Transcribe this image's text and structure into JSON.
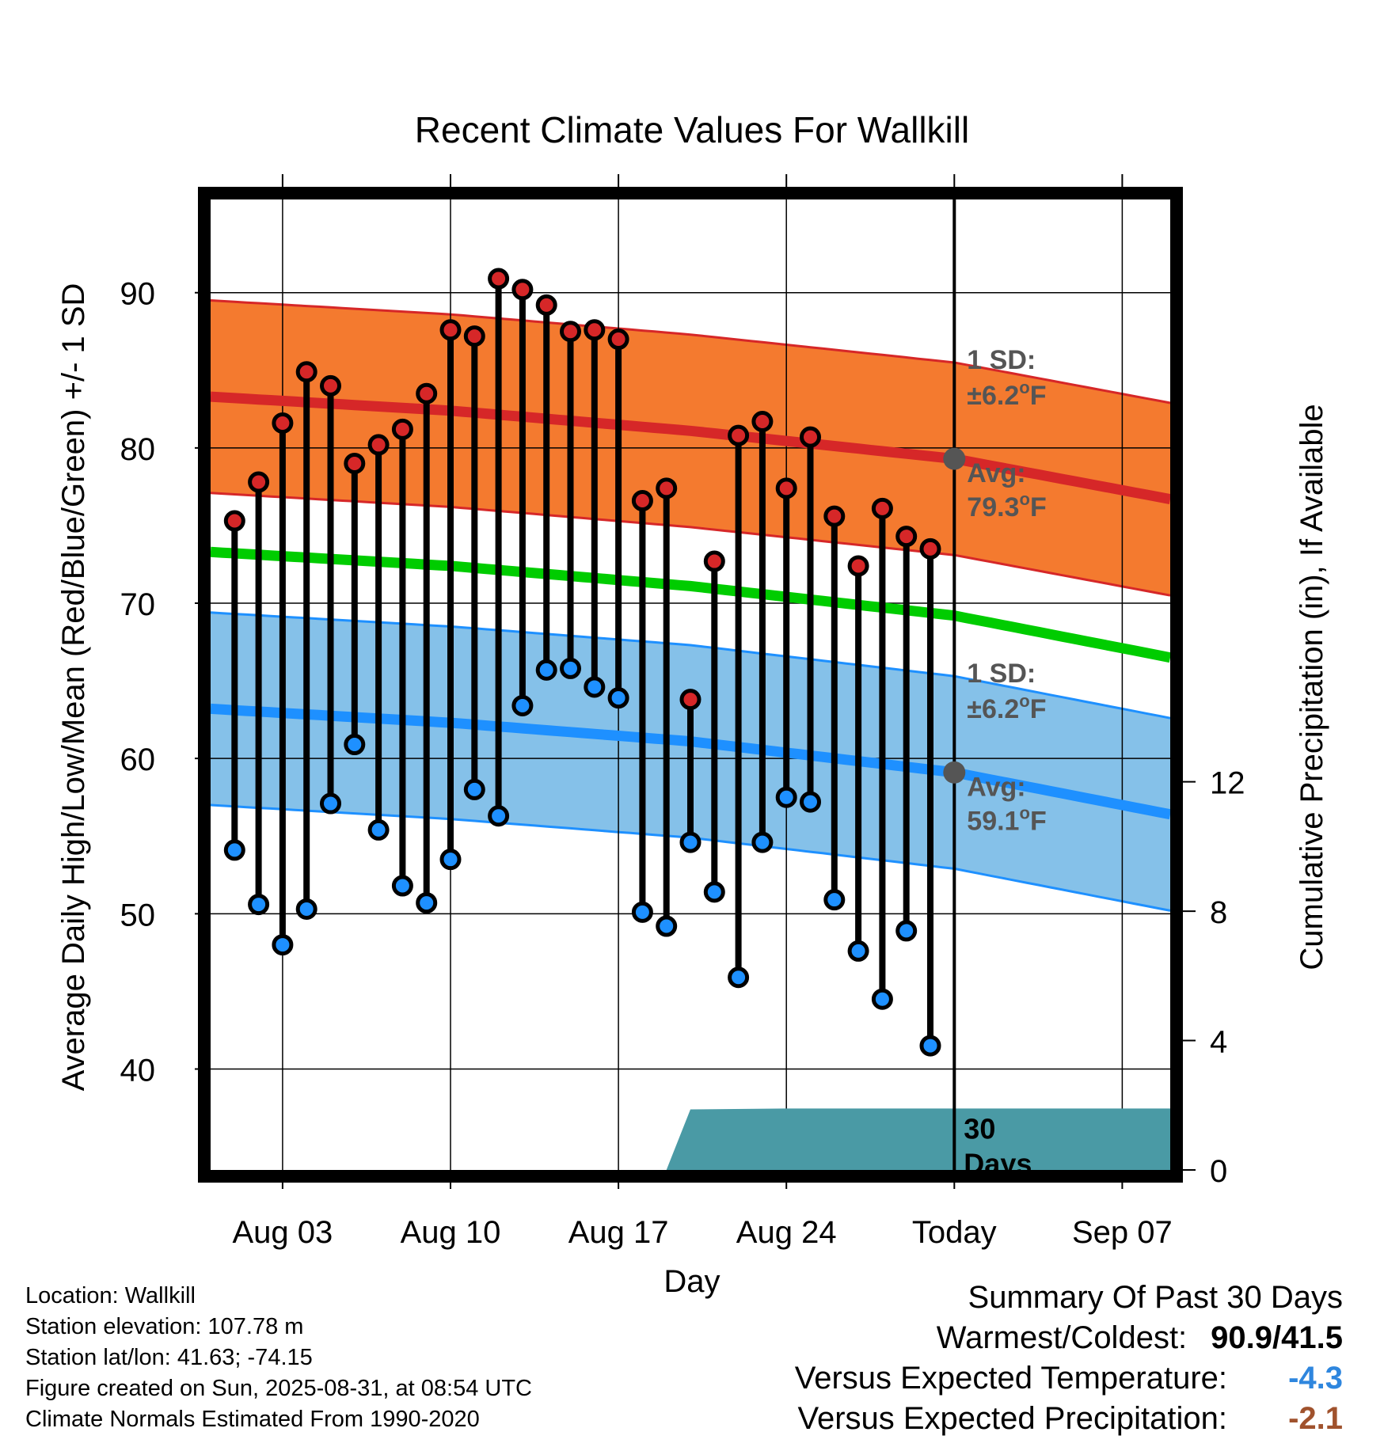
{
  "chart_data": {
    "type": "line",
    "title": "Recent Climate Values For Wallkill",
    "xlabel": "Day",
    "ylabel": "Average Daily High/Low/Mean (Red/Blue/Green) +/- 1 SD",
    "y2label": "Cumulative Precipitation (in), If Available",
    "x_ticks": [
      "Aug 03",
      "Aug 10",
      "Aug 17",
      "Aug 24",
      "Today",
      "Sep 07"
    ],
    "x_range": [
      "Jul 31",
      "Sep 09"
    ],
    "ylim": [
      33.5,
      96
    ],
    "y_ticks": [
      40,
      50,
      60,
      70,
      80,
      90
    ],
    "y2lim": [
      0,
      30
    ],
    "y2_ticks": [
      0,
      4,
      8,
      12
    ],
    "grid": true,
    "high_normal": {
      "x": [
        "Jul 31",
        "Aug 10",
        "Aug 20",
        "Aug 31",
        "Sep 09"
      ],
      "values": [
        83.3,
        82.4,
        81.1,
        79.3,
        76.7
      ],
      "sd": 6.2
    },
    "low_normal": {
      "x": [
        "Jul 31",
        "Aug 10",
        "Aug 20",
        "Aug 31",
        "Sep 09"
      ],
      "values": [
        63.2,
        62.3,
        61.1,
        59.1,
        56.4
      ],
      "sd": 6.2
    },
    "mean_normal": {
      "x": [
        "Jul 31",
        "Aug 10",
        "Aug 20",
        "Aug 31",
        "Sep 09"
      ],
      "values": [
        73.3,
        72.4,
        71.1,
        69.2,
        66.5
      ]
    },
    "daily": {
      "dates": [
        "Aug 01",
        "Aug 02",
        "Aug 03",
        "Aug 04",
        "Aug 05",
        "Aug 06",
        "Aug 07",
        "Aug 08",
        "Aug 09",
        "Aug 10",
        "Aug 11",
        "Aug 12",
        "Aug 13",
        "Aug 14",
        "Aug 15",
        "Aug 16",
        "Aug 17",
        "Aug 18",
        "Aug 19",
        "Aug 20",
        "Aug 21",
        "Aug 22",
        "Aug 23",
        "Aug 24",
        "Aug 25",
        "Aug 26",
        "Aug 27",
        "Aug 28",
        "Aug 29",
        "Aug 30"
      ],
      "highs": [
        75.3,
        77.8,
        81.6,
        84.9,
        84.0,
        79.0,
        80.2,
        81.2,
        83.5,
        87.6,
        87.2,
        90.9,
        90.2,
        89.2,
        87.5,
        87.6,
        87.0,
        76.6,
        77.4,
        63.8,
        72.7,
        80.8,
        81.7,
        77.4,
        80.7,
        75.6,
        72.4,
        76.1,
        74.3,
        73.5
      ],
      "lows": [
        54.1,
        50.6,
        48.0,
        50.3,
        57.1,
        60.9,
        55.4,
        51.8,
        50.7,
        53.5,
        58.0,
        56.3,
        63.4,
        65.7,
        65.8,
        64.6,
        63.9,
        50.1,
        49.2,
        54.6,
        51.4,
        45.9,
        54.6,
        57.5,
        57.2,
        50.9,
        47.6,
        44.5,
        48.9,
        41.5
      ]
    },
    "precip": {
      "cumulative_final": 1.9
    },
    "annotations": {
      "high_sd_line1": "1 SD:",
      "high_sd_line2": "±6.2",
      "high_sd_unit": "F",
      "high_avg_line1": "Avg:",
      "high_avg_line2": "79.3",
      "high_avg_unit": "F",
      "low_sd_line1": "1 SD:",
      "low_sd_line2": "±6.2",
      "low_sd_unit": "F",
      "low_avg_line1": "Avg:",
      "low_avg_line2": "59.1",
      "low_avg_unit": "F",
      "degree": "o",
      "days_line1": "30",
      "days_line2": "Days"
    },
    "colors": {
      "high_band": "#f47a2f",
      "high_line": "#d62728",
      "low_band": "#85c1e9",
      "low_line": "#1e90ff",
      "mean_line": "#00cc00",
      "precip": "#4a9aa5",
      "high_marker": "#d62728",
      "low_marker": "#1e90ff"
    }
  },
  "info": {
    "location": "Location: Wallkill",
    "elevation": "Station elevation: 107.78 m",
    "latlon": "Station lat/lon: 41.63; -74.15",
    "created": "Figure created on Sun, 2025-08-31, at 08:54 UTC",
    "normals": "Climate Normals Estimated From 1990-2020"
  },
  "summary": {
    "heading": "Summary Of Past 30 Days",
    "warm_cold_label": "Warmest/Coldest:",
    "warm_cold_value": "90.9/41.5",
    "temp_label": "Versus Expected Temperature:",
    "temp_value": "-4.3",
    "temp_color": "#2e86de",
    "precip_label": "Versus Expected Precipitation:",
    "precip_value": "-2.1",
    "precip_color": "#a0522d"
  }
}
